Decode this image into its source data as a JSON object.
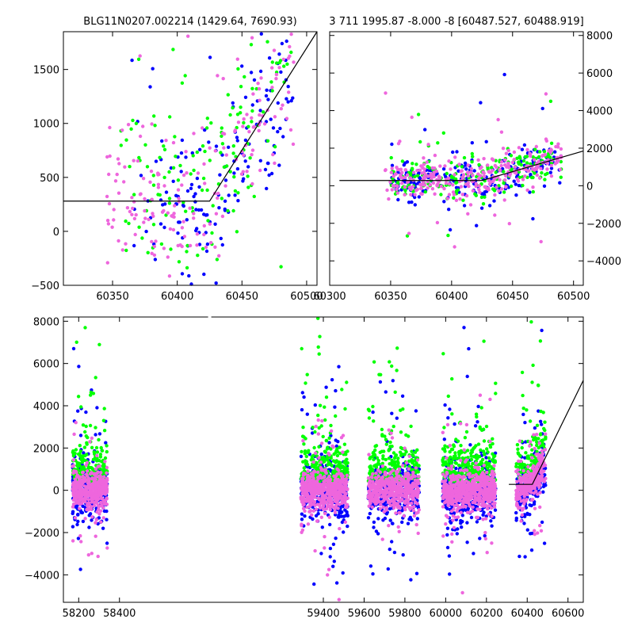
{
  "colors": {
    "series_blue": "#0000ff",
    "series_green": "#00ff00",
    "series_pink": "#ee66dd",
    "model_line": "#000000"
  },
  "chart_data": [
    {
      "id": "top-left",
      "type": "scatter",
      "title": "BLG11N0207.002214 (1429.64, 7690.93)",
      "xlim": [
        60312,
        60508
      ],
      "ylim": [
        -500,
        1850
      ],
      "xticks": [
        60350,
        60400,
        60450,
        60500
      ],
      "yticks": [
        -500,
        0,
        500,
        1000,
        1500
      ],
      "ytick_side": "left",
      "grid": false,
      "model_line": [
        [
          60312,
          280
        ],
        [
          60425,
          280
        ],
        [
          60508,
          1850
        ]
      ],
      "series_cloud": [
        {
          "color": "series_blue",
          "x_range": [
            60365,
            60490
          ],
          "count": 170
        },
        {
          "color": "series_green",
          "x_range": [
            60355,
            60490
          ],
          "count": 150
        },
        {
          "color": "series_pink",
          "x_range": [
            60345,
            60490
          ],
          "count": 190
        }
      ]
    },
    {
      "id": "top-right",
      "type": "scatter",
      "title": "3 711 1995.87 -8.000 -8 [60487.527, 60488.919]",
      "xlim": [
        60300,
        60508
      ],
      "ylim": [
        -5300,
        8200
      ],
      "xticks": [
        60300,
        60350,
        60400,
        60450,
        60500
      ],
      "yticks": [
        -4000,
        -2000,
        0,
        2000,
        4000,
        6000,
        8000
      ],
      "ytick_side": "right",
      "grid": false,
      "model_line": [
        [
          60308,
          280
        ],
        [
          60425,
          280
        ],
        [
          60508,
          1850
        ]
      ],
      "series_cloud": [
        {
          "color": "series_blue",
          "x_range": [
            60350,
            60490
          ],
          "count": 230
        },
        {
          "color": "series_green",
          "x_range": [
            60350,
            60490
          ],
          "count": 200
        },
        {
          "color": "series_pink",
          "x_range": [
            60345,
            60490
          ],
          "count": 300
        }
      ]
    },
    {
      "id": "bottom",
      "type": "scatter",
      "title": "",
      "xlim": [
        58125,
        60675
      ],
      "ylim": [
        -5300,
        8200
      ],
      "xticks": [
        58200,
        58400,
        59400,
        59600,
        59800,
        60000,
        60200,
        60400,
        60600
      ],
      "yticks": [
        -4000,
        -2000,
        0,
        2000,
        4000,
        6000,
        8000
      ],
      "ytick_side": "left",
      "grid": false,
      "axis_break": {
        "at": [
          58460,
          59225
        ]
      },
      "model_line": [
        [
          60310,
          280
        ],
        [
          60425,
          280
        ],
        [
          60675,
          5200
        ]
      ],
      "seasons": [
        {
          "x_range": [
            58170,
            58340
          ],
          "count": 900
        },
        {
          "x_range": [
            59290,
            59520
          ],
          "count": 1100
        },
        {
          "x_range": [
            59620,
            59870
          ],
          "count": 1000
        },
        {
          "x_range": [
            59985,
            60245
          ],
          "count": 1300
        },
        {
          "x_range": [
            60345,
            60490
          ],
          "count": 600
        }
      ]
    }
  ]
}
